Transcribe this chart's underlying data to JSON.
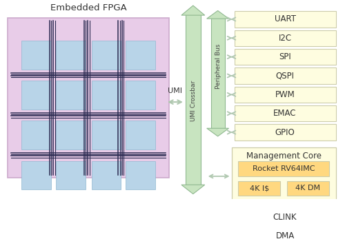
{
  "title": "Embedded FPGA",
  "bg_color": "#ffffff",
  "fpga_bg": "#e8cce8",
  "fpga_tile_color": "#b8d4e8",
  "fpga_tile_edge": "#90b8d0",
  "peripheral_boxes": [
    "UART",
    "I2C",
    "SPI",
    "QSPI",
    "PWM",
    "EMAC",
    "GPIO"
  ],
  "bottom_boxes": [
    "CLINK",
    "DMA"
  ],
  "mgmt_core_label": "Management Core",
  "rocket_label": "Rocket RV64IMC",
  "cache_labels": [
    "4K I$",
    "4K DM"
  ],
  "umi_label": "UMI",
  "crossbar_label": "UMI Crossbar",
  "peripheral_bus_label": "Peripheral Bus",
  "box_fill": "#fefde0",
  "box_edge": "#ccccaa",
  "arrow_fill": "#c8e4c0",
  "arrow_edge": "#90b890",
  "mgmt_fill": "#fefde0",
  "mgmt_edge": "#ccccaa",
  "rocket_fill": "#ffd880",
  "cache_fill": "#ffd880",
  "wire_color": "#2a2a50",
  "connector_color": "#b0c8b0"
}
